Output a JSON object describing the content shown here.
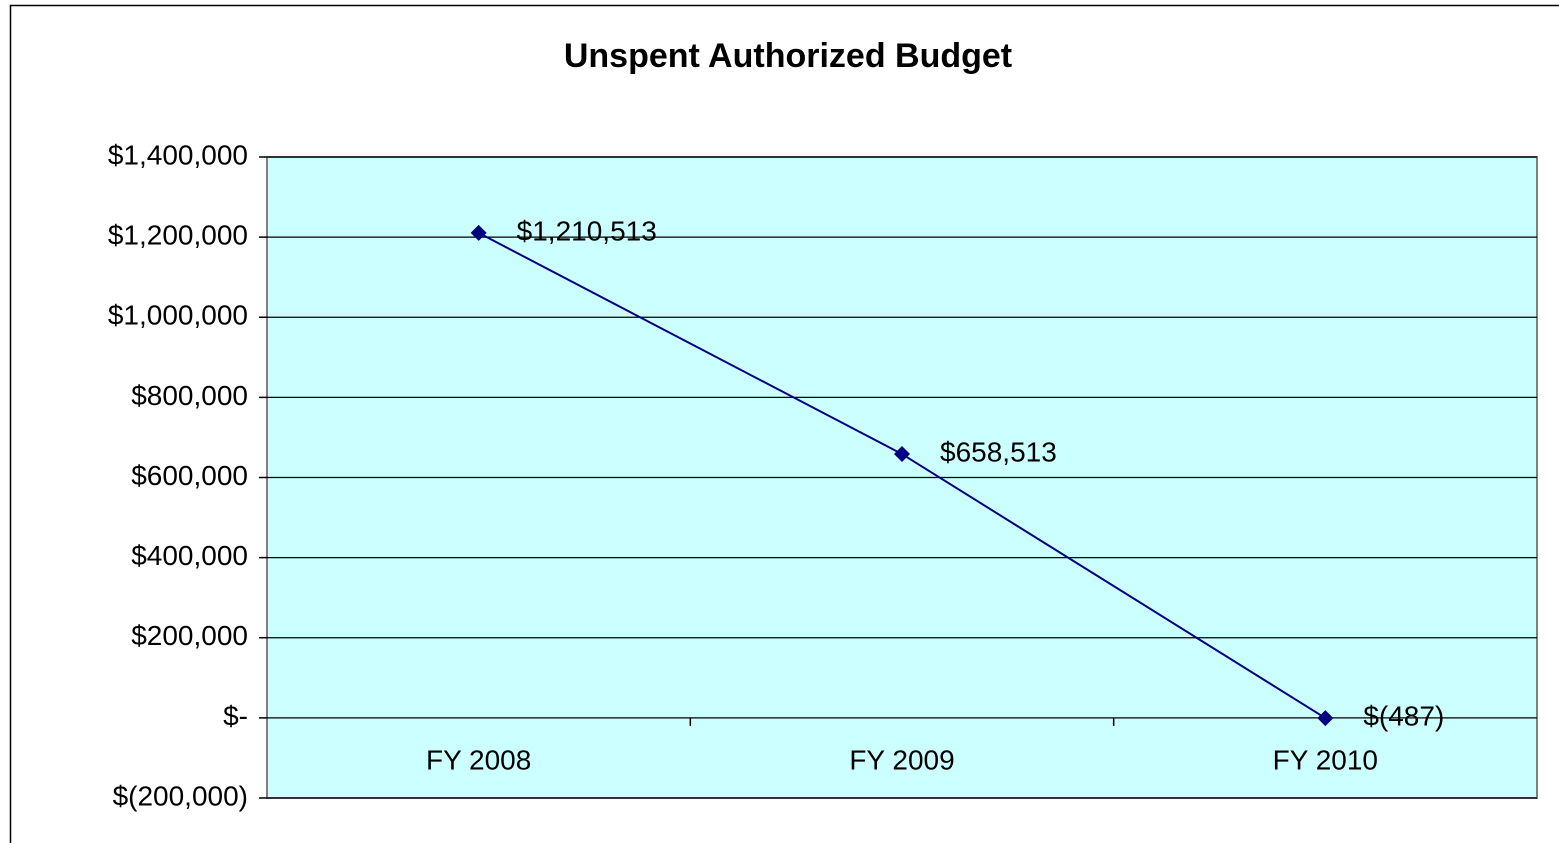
{
  "chart_data": {
    "type": "line",
    "title": "Unspent Authorized Budget",
    "categories": [
      "FY 2008",
      "FY 2009",
      "FY 2010"
    ],
    "values": [
      1210513,
      658513,
      -487
    ],
    "value_labels": [
      "$1,210,513",
      "$658,513",
      "$(487)"
    ],
    "color": "#000080",
    "ylim": [
      -200000,
      1400000
    ],
    "yticks": [
      {
        "value": -200000,
        "label": "$(200,000)"
      },
      {
        "value": 0,
        "label": "$-"
      },
      {
        "value": 200000,
        "label": "$200,000"
      },
      {
        "value": 400000,
        "label": "$400,000"
      },
      {
        "value": 600000,
        "label": "$600,000"
      },
      {
        "value": 800000,
        "label": "$800,000"
      },
      {
        "value": 1000000,
        "label": "$1,000,000"
      },
      {
        "value": 1200000,
        "label": "$1,200,000"
      },
      {
        "value": 1400000,
        "label": "$1,400,000"
      }
    ],
    "grid": true,
    "plot_background": "#ccffff"
  }
}
